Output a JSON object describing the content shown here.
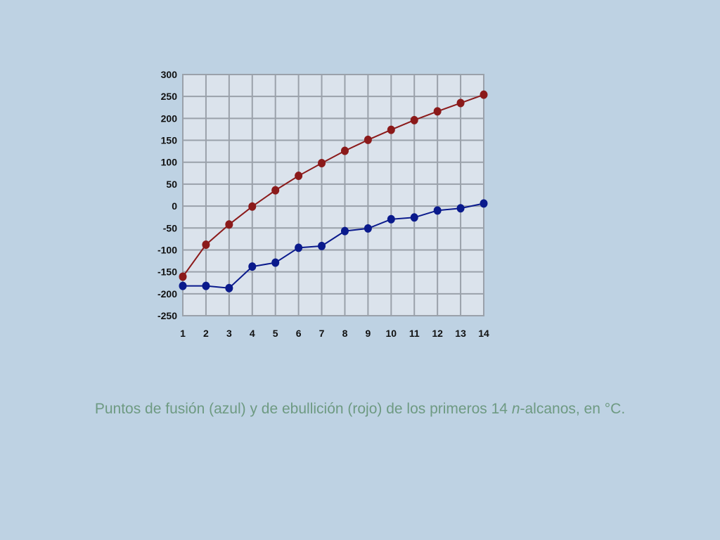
{
  "chart_data": {
    "type": "line",
    "x": [
      1,
      2,
      3,
      4,
      5,
      6,
      7,
      8,
      9,
      10,
      11,
      12,
      13,
      14
    ],
    "series": [
      {
        "color": "#8b1a1a",
        "values": [
          -161,
          -88,
          -42,
          -1,
          36,
          69,
          98,
          126,
          151,
          174,
          196,
          216,
          235,
          254
        ]
      },
      {
        "color": "#0a1a8c",
        "values": [
          -182,
          -182,
          -187,
          -138,
          -129,
          -95,
          -91,
          -57,
          -51,
          -30,
          -26,
          -10,
          -5,
          6
        ]
      }
    ],
    "title": "",
    "xlabel": "",
    "ylabel": "",
    "xlim": [
      1,
      14
    ],
    "ylim": [
      -250,
      300
    ],
    "yticks": [
      300,
      250,
      200,
      150,
      100,
      50,
      0,
      -50,
      -100,
      -150,
      -200,
      -250
    ],
    "xticks": [
      1,
      2,
      3,
      4,
      5,
      6,
      7,
      8,
      9,
      10,
      11,
      12,
      13,
      14
    ],
    "grid": true,
    "plot_background": "#dbe3ec",
    "grid_color": "#9aa1aa"
  },
  "caption": {
    "before": "Puntos de fusión (azul) y de ebullición (rojo) de los primeros 14 ",
    "italic": "n",
    "after": "-alcanos, en ",
    "unit": "°C."
  }
}
